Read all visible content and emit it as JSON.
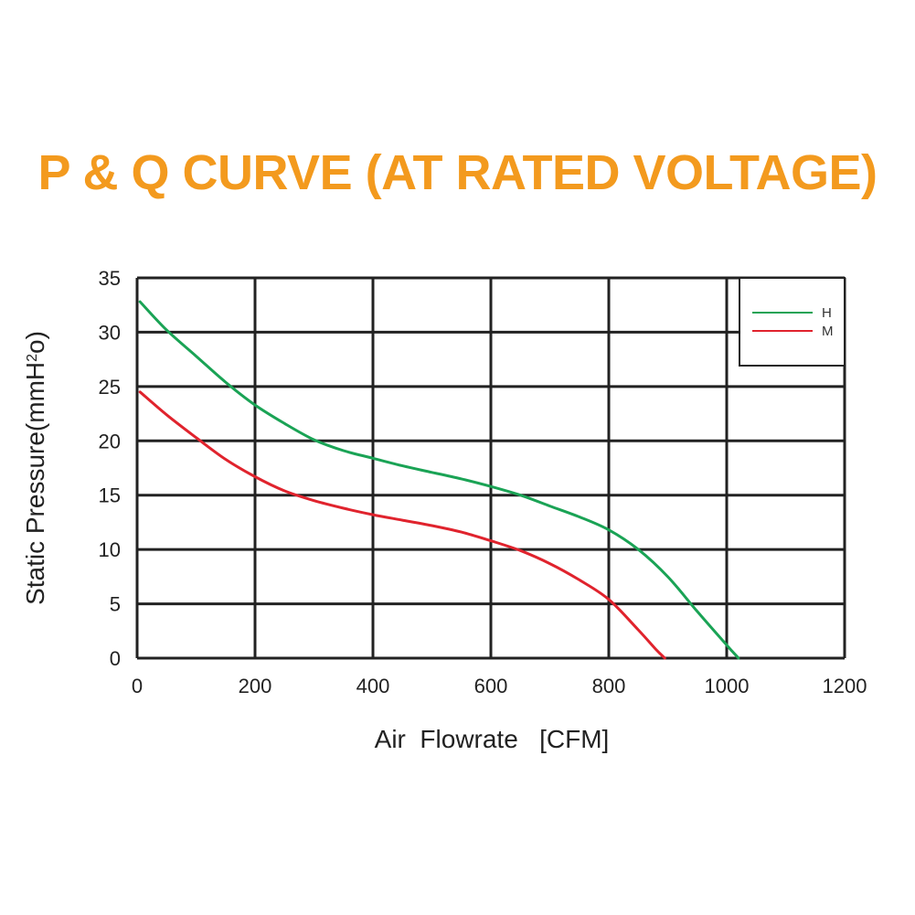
{
  "chart_data": {
    "type": "line",
    "title": "P & Q CURVE (AT RATED VOLTAGE)",
    "xlabel": "Air  Flowrate   [CFM]",
    "ylabel_main": "Static Pressure(mmH",
    "ylabel_sup": "2",
    "ylabel_end": "o)",
    "xlim": [
      0,
      1200
    ],
    "ylim": [
      0,
      35
    ],
    "xticks": [
      0,
      200,
      400,
      600,
      800,
      1000,
      1200
    ],
    "yticks": [
      0,
      5,
      10,
      15,
      20,
      25,
      30,
      35
    ],
    "grid": true,
    "legend_position": "top-right",
    "series": [
      {
        "name": "H",
        "color": "#1aa355",
        "x": [
          5,
          50,
          100,
          150,
          200,
          250,
          300,
          350,
          400,
          450,
          500,
          550,
          600,
          650,
          700,
          750,
          800,
          850,
          900,
          950,
          1000,
          1020
        ],
        "y": [
          32.8,
          30.2,
          27.8,
          25.4,
          23.3,
          21.6,
          20.1,
          19.1,
          18.4,
          17.7,
          17.1,
          16.5,
          15.8,
          15.0,
          14.0,
          13.0,
          11.8,
          10.0,
          7.5,
          4.3,
          1.2,
          0.0
        ]
      },
      {
        "name": "M",
        "color": "#e0232d",
        "x": [
          5,
          50,
          100,
          150,
          200,
          250,
          300,
          350,
          400,
          450,
          500,
          550,
          600,
          650,
          700,
          750,
          800,
          850,
          880,
          895
        ],
        "y": [
          24.5,
          22.4,
          20.3,
          18.3,
          16.7,
          15.4,
          14.5,
          13.8,
          13.2,
          12.7,
          12.2,
          11.6,
          10.8,
          9.9,
          8.7,
          7.2,
          5.4,
          2.6,
          0.8,
          0.0
        ]
      }
    ]
  },
  "colors": {
    "title": "#f39a1e",
    "grid": "#222222"
  }
}
